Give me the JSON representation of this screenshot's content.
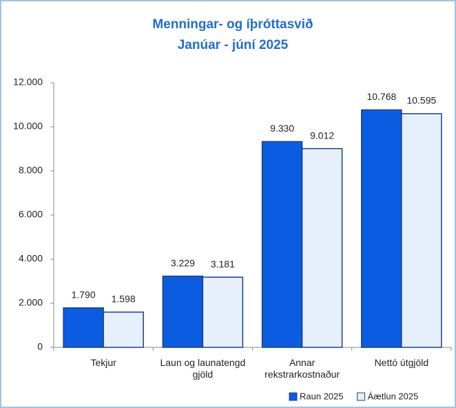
{
  "chart_data": {
    "type": "bar",
    "title": "Menningar- og íþróttasvið",
    "subtitle": "Janúar - júní 2025",
    "categories": [
      "Tekjur",
      "Laun og launatengd gjöld",
      "Annar rekstrarkostnaður",
      "Nettó útgjöld"
    ],
    "series": [
      {
        "name": "Raun 2025",
        "color": "#0b5ce0",
        "values": [
          1790,
          3229,
          9330,
          10768
        ],
        "value_labels": [
          "1.790",
          "3.229",
          "9.330",
          "10.768"
        ]
      },
      {
        "name": "Áætlun 2025",
        "color": "#e6f0fc",
        "values": [
          1598,
          3181,
          9012,
          10595
        ],
        "value_labels": [
          "1.598",
          "3.181",
          "9.012",
          "10.595"
        ]
      }
    ],
    "ylim": [
      0,
      12000
    ],
    "yticks": [
      0,
      {
        "value": 2000,
        "label": "2.000"
      },
      {
        "value": 4000,
        "label": "4.000"
      },
      {
        "value": 6000,
        "label": "6.000"
      },
      {
        "value": 8000,
        "label": "8.000"
      },
      {
        "value": 10000,
        "label": "10.000"
      },
      {
        "value": 12000,
        "label": "12.000"
      }
    ],
    "legend": "bottom-right"
  }
}
